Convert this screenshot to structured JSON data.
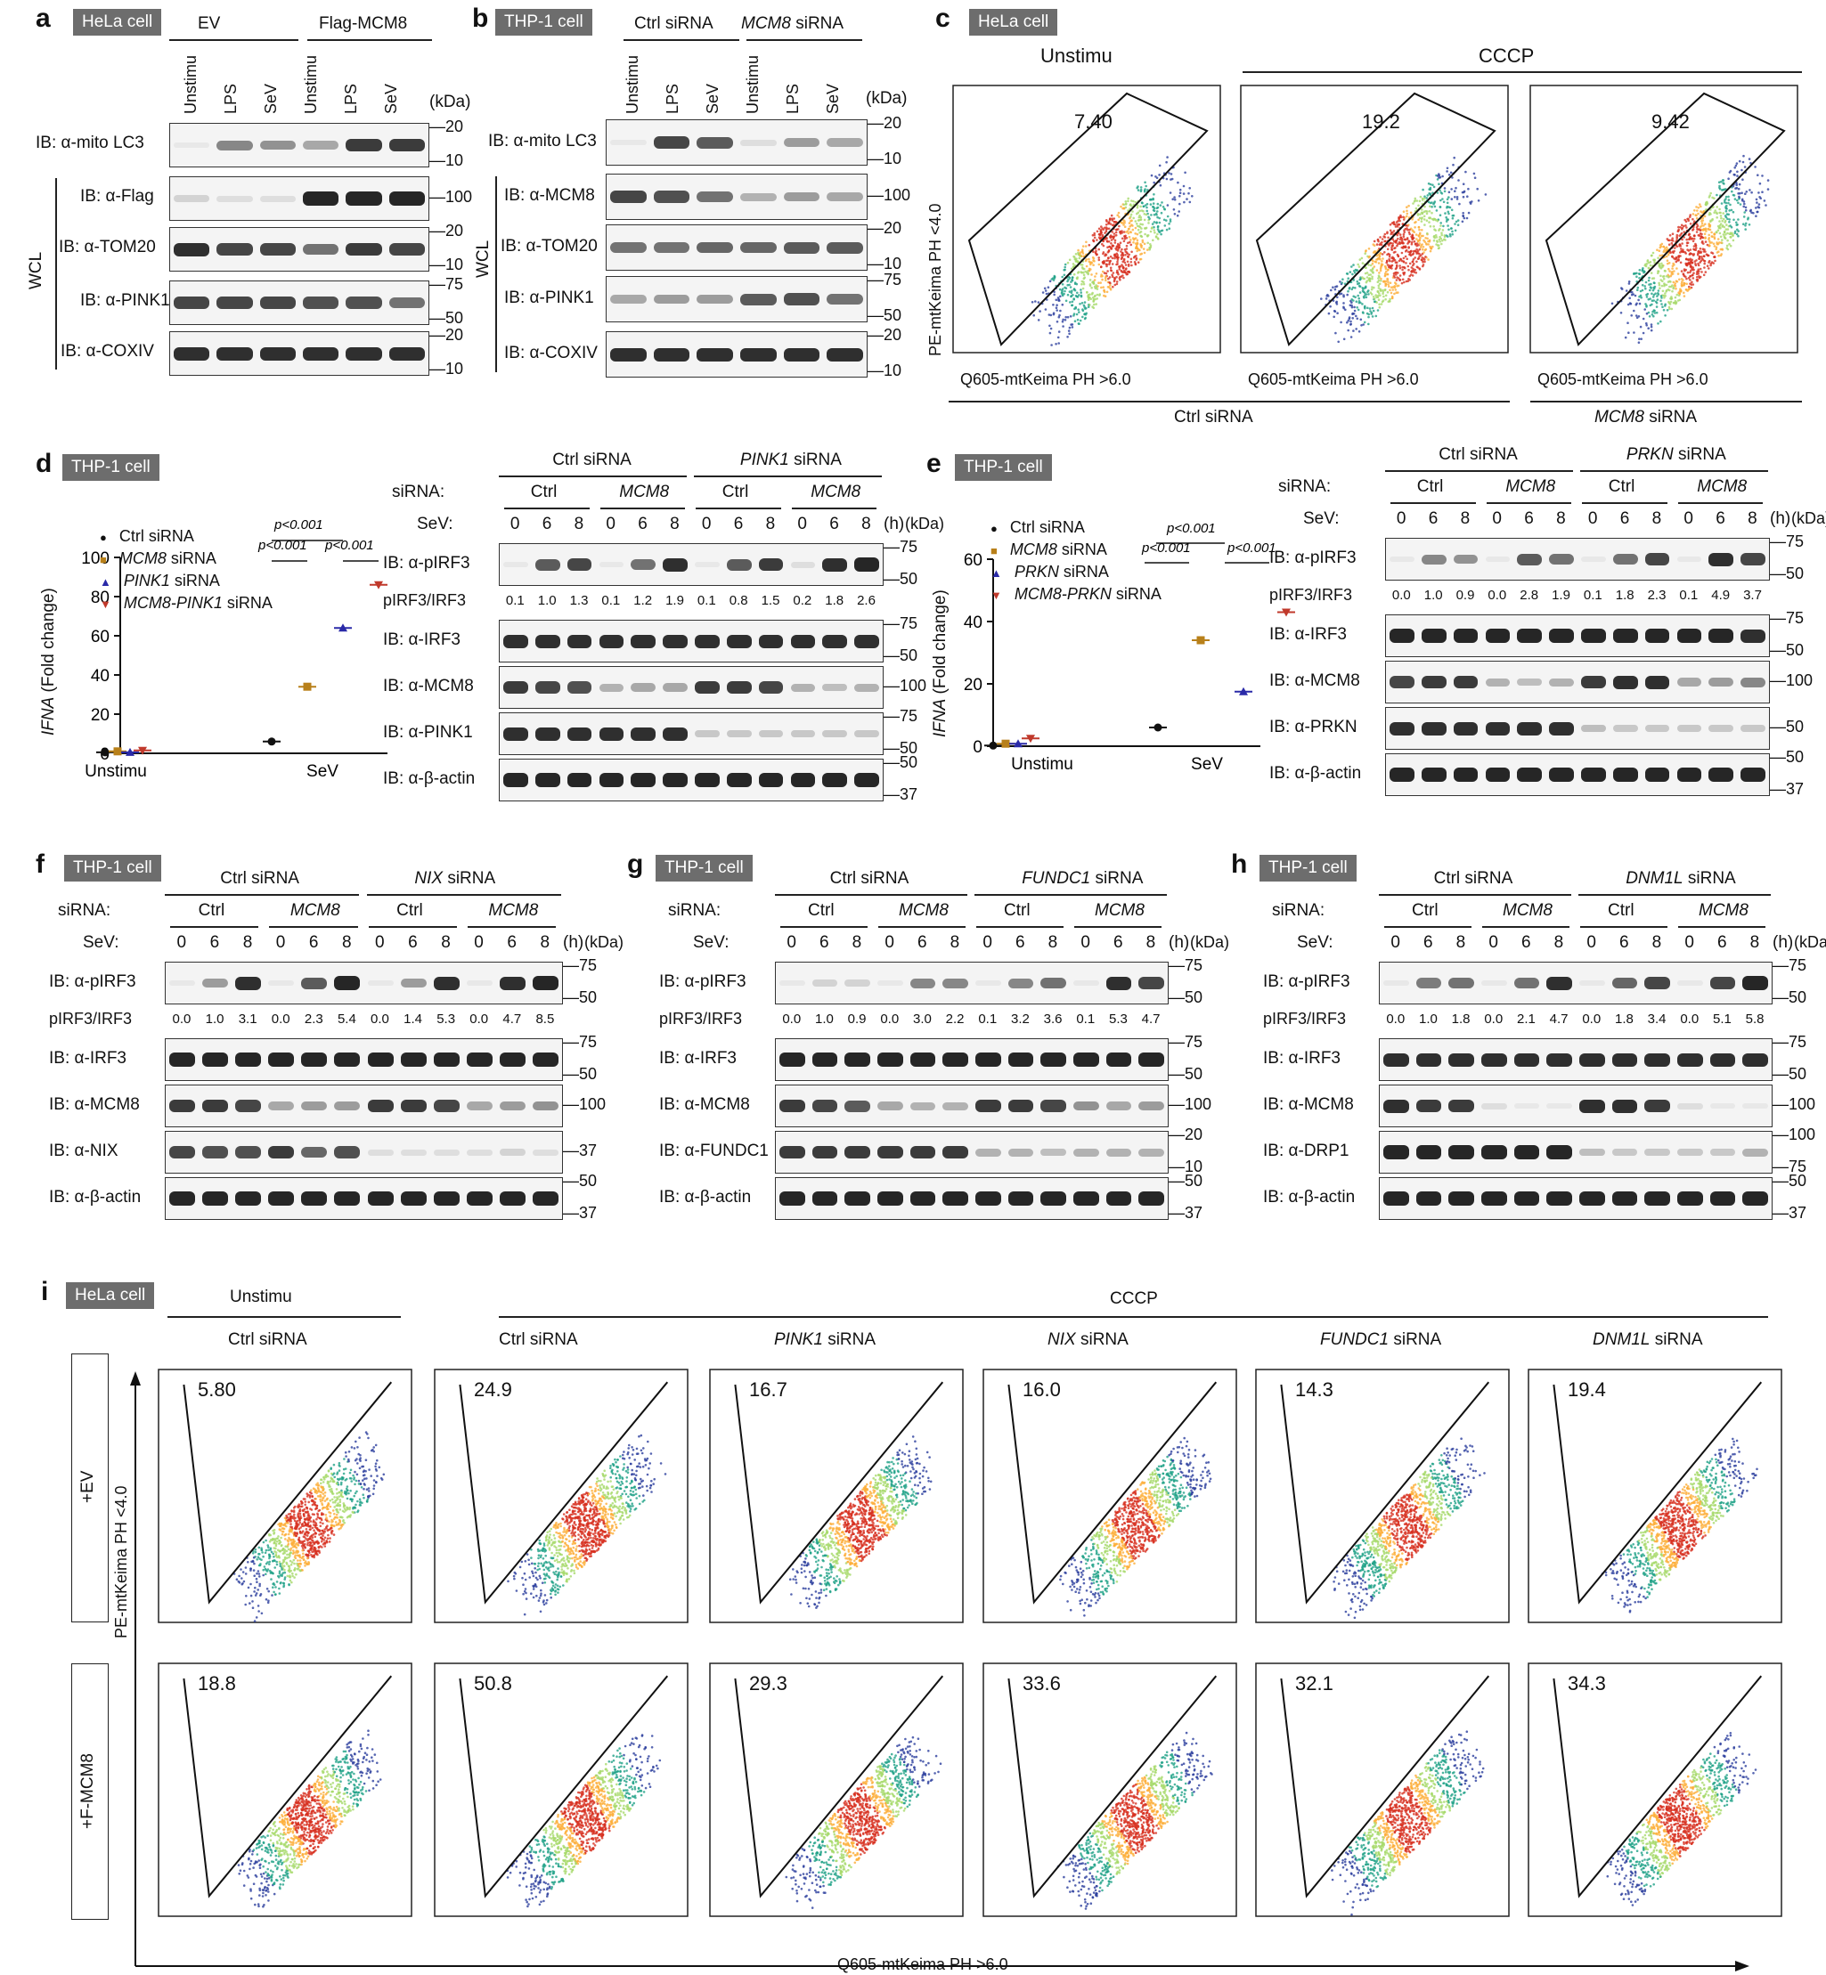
{
  "panels": {
    "a": {
      "letter": "a",
      "cell": "HeLa cell",
      "group1": "EV",
      "group2": "Flag-MCM8",
      "lanes": [
        "Unstimu",
        "LPS",
        "SeV",
        "Unstimu",
        "LPS",
        "SeV"
      ],
      "kda": "(kDa)",
      "rows": [
        {
          "label": "IB: α-mito LC3",
          "mw": [
            "20",
            "10"
          ]
        },
        {
          "label": "IB: α-Flag",
          "mw": [
            "100"
          ]
        },
        {
          "label": "IB: α-TOM20",
          "mw": [
            "20",
            "10"
          ]
        },
        {
          "label": "IB: α-PINK1",
          "mw": [
            "75",
            "50"
          ]
        },
        {
          "label": "IB: α-COXIV",
          "mw": [
            "20",
            "10"
          ]
        }
      ],
      "wcl": "WCL"
    },
    "b": {
      "letter": "b",
      "cell": "THP-1 cell",
      "group1": "Ctrl siRNA",
      "group2": "MCM8",
      "group2b": "siRNA",
      "lanes": [
        "Unstimu",
        "LPS",
        "SeV",
        "Unstimu",
        "LPS",
        "SeV"
      ],
      "kda": "(kDa)",
      "rows": [
        {
          "label": "IB: α-mito LC3",
          "mw": [
            "20",
            "10"
          ]
        },
        {
          "label": "IB: α-MCM8",
          "mw": [
            "100"
          ]
        },
        {
          "label": "IB: α-TOM20",
          "mw": [
            "20",
            "10"
          ]
        },
        {
          "label": "IB: α-PINK1",
          "mw": [
            "75",
            "50"
          ]
        },
        {
          "label": "IB: α-COXIV",
          "mw": [
            "20",
            "10"
          ]
        }
      ],
      "wcl": "WCL"
    },
    "c": {
      "letter": "c",
      "cell": "HeLa cell",
      "cond1": "Unstimu",
      "cond2": "CCCP",
      "yaxis": "PE-mtKeima PH <4.0",
      "xaxis": "Q605-mtKeima PH >6.0",
      "values": [
        "7.40",
        "19.2",
        "9.42"
      ],
      "sub1": "Ctrl  siRNA",
      "sub2": "MCM8",
      "sub2b": "siRNA"
    },
    "d": {
      "letter": "d",
      "cell": "THP-1 cell",
      "legend": [
        "Ctrl siRNA",
        "MCM8",
        "PINK1",
        "MCM8-PINK1"
      ],
      "legend_suffix": "siRNA",
      "ylabel": "IFNA",
      "ylabel2": "(Fold change)",
      "yticks": [
        "0",
        "20",
        "40",
        "60",
        "80",
        "100"
      ],
      "xcats": [
        "Unstimu",
        "SeV"
      ],
      "pvals": [
        "p<0.001",
        "p<0.001",
        "p<0.001"
      ],
      "blot": {
        "group1": "Ctrl siRNA",
        "group2": "PINK1",
        "group2b": "siRNA",
        "sirna": "siRNA:",
        "sub": [
          "Ctrl",
          "MCM8",
          "Ctrl",
          "MCM8"
        ],
        "sev": "SeV:",
        "times": [
          "0",
          "6",
          "8",
          "0",
          "6",
          "8",
          "0",
          "6",
          "8",
          "0",
          "6",
          "8"
        ],
        "h": "(h)",
        "kda": "(kDa)",
        "rows": [
          {
            "label": "IB: α-pIRF3",
            "mw": [
              "75",
              "50"
            ]
          },
          {
            "label": "IB: α-IRF3",
            "mw": [
              "75",
              "50"
            ]
          },
          {
            "label": "IB: α-MCM8",
            "mw": [
              "100"
            ]
          },
          {
            "label": "IB: α-PINK1",
            "mw": [
              "75",
              "50"
            ]
          },
          {
            "label": "IB: α-β-actin",
            "mw": [
              "50",
              "37"
            ]
          }
        ],
        "ratio_label": "pIRF3/IRF3",
        "ratios": [
          "0.1",
          "1.0",
          "1.3",
          "0.1",
          "1.2",
          "1.9",
          "0.1",
          "0.8",
          "1.5",
          "0.2",
          "1.8",
          "2.6"
        ]
      }
    },
    "e": {
      "letter": "e",
      "cell": "THP-1 cell",
      "legend": [
        "Ctrl siRNA",
        "MCM8",
        "PRKN",
        "MCM8-PRKN"
      ],
      "legend_suffix": "siRNA",
      "ylabel": "IFNA",
      "ylabel2": "(Fold change)",
      "yticks": [
        "0",
        "20",
        "40",
        "60"
      ],
      "xcats": [
        "Unstimu",
        "SeV"
      ],
      "pvals": [
        "p<0.001",
        "p<0.001",
        "p<0.001"
      ],
      "blot": {
        "group1": "Ctrl siRNA",
        "group2": "PRKN",
        "group2b": "siRNA",
        "sirna": "siRNA:",
        "sub": [
          "Ctrl",
          "MCM8",
          "Ctrl",
          "MCM8"
        ],
        "sev": "SeV:",
        "times": [
          "0",
          "6",
          "8",
          "0",
          "6",
          "8",
          "0",
          "6",
          "8",
          "0",
          "6",
          "8"
        ],
        "h": "(h)",
        "kda": "(kDa)",
        "rows": [
          {
            "label": "IB: α-pIRF3",
            "mw": [
              "75",
              "50"
            ]
          },
          {
            "label": "IB: α-IRF3",
            "mw": [
              "75",
              "50"
            ]
          },
          {
            "label": "IB: α-MCM8",
            "mw": [
              "100"
            ]
          },
          {
            "label": "IB: α-PRKN",
            "mw": [
              "50"
            ]
          },
          {
            "label": "IB: α-β-actin",
            "mw": [
              "50",
              "37"
            ]
          }
        ],
        "ratio_label": "pIRF3/IRF3",
        "ratios": [
          "0.0",
          "1.0",
          "0.9",
          "0.0",
          "2.8",
          "1.9",
          "0.1",
          "1.8",
          "2.3",
          "0.1",
          "4.9",
          "3.7"
        ]
      }
    },
    "f": {
      "letter": "f",
      "cell": "THP-1 cell",
      "group1": "Ctrl siRNA",
      "group2": "NIX",
      "group2b": "siRNA",
      "sirna": "siRNA:",
      "sub": [
        "Ctrl",
        "MCM8",
        "Ctrl",
        "MCM8"
      ],
      "sev": "SeV:",
      "times": [
        "0",
        "6",
        "8",
        "0",
        "6",
        "8",
        "0",
        "6",
        "8",
        "0",
        "6",
        "8"
      ],
      "h": "(h)",
      "kda": "(kDa)",
      "rows": [
        {
          "label": "IB: α-pIRF3",
          "mw": [
            "75",
            "50"
          ]
        },
        {
          "label": "IB: α-IRF3",
          "mw": [
            "75",
            "50"
          ]
        },
        {
          "label": "IB: α-MCM8",
          "mw": [
            "100"
          ]
        },
        {
          "label": "IB: α-NIX",
          "mw": [
            "37"
          ]
        },
        {
          "label": "IB: α-β-actin",
          "mw": [
            "50",
            "37"
          ]
        }
      ],
      "ratio_label": "pIRF3/IRF3",
      "ratios": [
        "0.0",
        "1.0",
        "3.1",
        "0.0",
        "2.3",
        "5.4",
        "0.0",
        "1.4",
        "5.3",
        "0.0",
        "4.7",
        "8.5"
      ]
    },
    "g": {
      "letter": "g",
      "cell": "THP-1 cell",
      "group1": "Ctrl siRNA",
      "group2": "FUNDC1",
      "group2b": "siRNA",
      "sirna": "siRNA:",
      "sub": [
        "Ctrl",
        "MCM8",
        "Ctrl",
        "MCM8"
      ],
      "sev": "SeV:",
      "times": [
        "0",
        "6",
        "8",
        "0",
        "6",
        "8",
        "0",
        "6",
        "8",
        "0",
        "6",
        "8"
      ],
      "h": "(h)",
      "kda": "(kDa)",
      "rows": [
        {
          "label": "IB: α-pIRF3",
          "mw": [
            "75",
            "50"
          ]
        },
        {
          "label": "IB: α-IRF3",
          "mw": [
            "75",
            "50"
          ]
        },
        {
          "label": "IB: α-MCM8",
          "mw": [
            "100"
          ]
        },
        {
          "label": "IB: α-FUNDC1",
          "mw": [
            "20",
            "10"
          ]
        },
        {
          "label": "IB: α-β-actin",
          "mw": [
            "50",
            "37"
          ]
        }
      ],
      "ratio_label": "pIRF3/IRF3",
      "ratios": [
        "0.0",
        "1.0",
        "0.9",
        "0.0",
        "3.0",
        "2.2",
        "0.1",
        "3.2",
        "3.6",
        "0.1",
        "5.3",
        "4.7"
      ]
    },
    "h": {
      "letter": "h",
      "cell": "THP-1 cell",
      "group1": "Ctrl siRNA",
      "group2": "DNM1L",
      "group2b": "siRNA",
      "sirna": "siRNA:",
      "sub": [
        "Ctrl",
        "MCM8",
        "Ctrl",
        "MCM8"
      ],
      "sev": "SeV:",
      "times": [
        "0",
        "6",
        "8",
        "0",
        "6",
        "8",
        "0",
        "6",
        "8",
        "0",
        "6",
        "8"
      ],
      "h": "(h)",
      "kda": "(kDa)",
      "rows": [
        {
          "label": "IB: α-pIRF3",
          "mw": [
            "75",
            "50"
          ]
        },
        {
          "label": "IB: α-IRF3",
          "mw": [
            "75",
            "50"
          ]
        },
        {
          "label": "IB: α-MCM8",
          "mw": [
            "100"
          ]
        },
        {
          "label": "IB: α-DRP1",
          "mw": [
            "100",
            "75"
          ]
        },
        {
          "label": "IB: α-β-actin",
          "mw": [
            "50",
            "37"
          ]
        }
      ],
      "ratio_label": "pIRF3/IRF3",
      "ratios": [
        "0.0",
        "1.0",
        "1.8",
        "0.0",
        "2.1",
        "4.7",
        "0.0",
        "1.8",
        "3.4",
        "0.0",
        "5.1",
        "5.8"
      ]
    },
    "i": {
      "letter": "i",
      "cell": "HeLa cell",
      "cond1": "Unstimu",
      "cond2": "CCCP",
      "cols": [
        {
          "name": "Ctrl",
          "suffix": "siRNA"
        },
        {
          "name": "Ctrl",
          "suffix": "siRNA"
        },
        {
          "name": "PINK1",
          "suffix": "siRNA"
        },
        {
          "name": "NIX",
          "suffix": "siRNA"
        },
        {
          "name": "FUNDC1",
          "suffix": "siRNA"
        },
        {
          "name": "DNM1L",
          "suffix": "siRNA"
        }
      ],
      "rows": [
        "+EV",
        "+F-MCM8"
      ],
      "values": [
        [
          "5.80",
          "24.9",
          "16.7",
          "16.0",
          "14.3",
          "19.4"
        ],
        [
          "18.8",
          "50.8",
          "29.3",
          "33.6",
          "32.1",
          "34.3"
        ]
      ],
      "yaxis": "PE-mtKeima PH <4.0",
      "xaxis": "Q605-mtKeima PH >6.0"
    }
  },
  "chart_data": [
    {
      "type": "scatter",
      "panel": "d",
      "categories": [
        "Unstimu",
        "SeV"
      ],
      "ylim": [
        0,
        100
      ],
      "ylabel": "IFNA (Fold change)",
      "series": [
        {
          "name": "Ctrl siRNA",
          "values": [
            0.5,
            6
          ]
        },
        {
          "name": "MCM8 siRNA",
          "values": [
            1,
            34
          ]
        },
        {
          "name": "PINK1 siRNA",
          "values": [
            0.5,
            64
          ]
        },
        {
          "name": "MCM8-PINK1 siRNA",
          "values": [
            1.5,
            86
          ]
        }
      ]
    },
    {
      "type": "scatter",
      "panel": "e",
      "categories": [
        "Unstimu",
        "SeV"
      ],
      "ylim": [
        0,
        60
      ],
      "ylabel": "IFNA (Fold change)",
      "series": [
        {
          "name": "Ctrl siRNA",
          "values": [
            0.2,
            6
          ]
        },
        {
          "name": "MCM8 siRNA",
          "values": [
            0.8,
            34
          ]
        },
        {
          "name": "PRKN siRNA",
          "values": [
            0.8,
            17.5
          ]
        },
        {
          "name": "MCM8-PRKN siRNA",
          "values": [
            2.5,
            43
          ]
        }
      ]
    }
  ],
  "colors": {
    "ctrl": "#111111",
    "mcm8": "#b8801a",
    "pink1": "#2a2aa8",
    "combo": "#c0392b",
    "tag": "#6d6d6d"
  }
}
